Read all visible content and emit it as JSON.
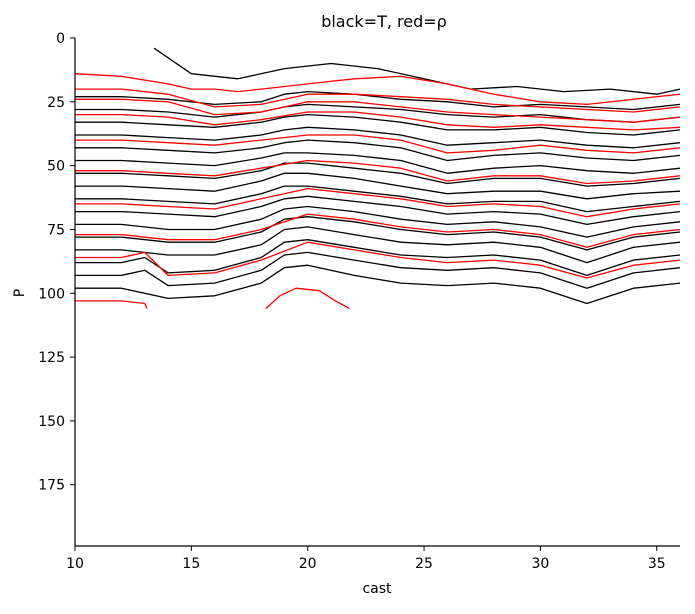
{
  "chart_data": {
    "type": "contour",
    "title": "black=T, red=ρ",
    "xlabel": "cast",
    "ylabel": "P",
    "xlim": [
      10,
      36
    ],
    "ylim": [
      199,
      0
    ],
    "y_inverted": true,
    "xticks": [
      10,
      15,
      20,
      25,
      30,
      35
    ],
    "yticks": [
      0,
      25,
      50,
      75,
      100,
      125,
      150,
      175
    ],
    "grid": false,
    "series": [
      {
        "color": "#000000",
        "contour_depths": [
          {
            "x": [
              13.4,
              15,
              17,
              19,
              21,
              23,
              25,
              27,
              29,
              31,
              33,
              35,
              36
            ],
            "y": [
              4,
              14,
              16,
              12,
              10,
              12,
              16,
              20,
              19,
              21,
              20,
              22,
              20
            ]
          },
          {
            "x": [
              10,
              12,
              14,
              16,
              18,
              19,
              20,
              22,
              24,
              26,
              28,
              30,
              32,
              34,
              36
            ],
            "y": [
              23,
              23,
              24,
              26,
              25,
              22,
              21,
              22,
              24,
              25,
              27,
              26,
              27,
              28,
              26
            ]
          },
          {
            "x": [
              10,
              12,
              14,
              16,
              18,
              19,
              20,
              22,
              24,
              26,
              28,
              30,
              32,
              34,
              36
            ],
            "y": [
              28,
              28,
              29,
              31,
              29,
              27,
              26,
              27,
              28,
              30,
              31,
              30,
              32,
              33,
              31
            ]
          },
          {
            "x": [
              10,
              12,
              14,
              16,
              18,
              19,
              20,
              22,
              24,
              26,
              28,
              30,
              32,
              34,
              36
            ],
            "y": [
              33,
              33,
              34,
              35,
              33,
              31,
              30,
              31,
              33,
              36,
              36,
              35,
              37,
              38,
              36
            ]
          },
          {
            "x": [
              10,
              12,
              14,
              16,
              18,
              19,
              20,
              22,
              24,
              26,
              28,
              30,
              32,
              34,
              36
            ],
            "y": [
              38,
              38,
              39,
              40,
              38,
              36,
              35,
              36,
              38,
              42,
              41,
              40,
              42,
              43,
              41
            ]
          },
          {
            "x": [
              10,
              12,
              14,
              16,
              18,
              19,
              20,
              22,
              24,
              26,
              28,
              30,
              32,
              34,
              36
            ],
            "y": [
              43,
              43,
              44,
              45,
              43,
              41,
              40,
              41,
              43,
              48,
              46,
              45,
              47,
              48,
              46
            ]
          },
          {
            "x": [
              10,
              12,
              14,
              16,
              18,
              19,
              20,
              22,
              24,
              26,
              28,
              30,
              32,
              34,
              36
            ],
            "y": [
              48,
              48,
              49,
              50,
              47,
              45,
              45,
              46,
              48,
              53,
              51,
              50,
              52,
              53,
              51
            ]
          },
          {
            "x": [
              10,
              12,
              14,
              16,
              18,
              19,
              20,
              22,
              24,
              26,
              28,
              30,
              32,
              34,
              36
            ],
            "y": [
              53,
              53,
              54,
              55,
              52,
              49,
              49,
              51,
              53,
              57,
              55,
              55,
              58,
              57,
              55
            ]
          },
          {
            "x": [
              10,
              12,
              14,
              16,
              18,
              19,
              20,
              22,
              24,
              26,
              28,
              30,
              32,
              34,
              36
            ],
            "y": [
              58,
              58,
              59,
              60,
              56,
              53,
              53,
              55,
              58,
              61,
              60,
              60,
              63,
              61,
              60
            ]
          },
          {
            "x": [
              10,
              12,
              14,
              16,
              18,
              19,
              20,
              22,
              24,
              26,
              28,
              30,
              32,
              34,
              36
            ],
            "y": [
              63,
              63,
              64,
              65,
              61,
              58,
              58,
              60,
              62,
              65,
              64,
              64,
              68,
              66,
              64
            ]
          },
          {
            "x": [
              10,
              12,
              14,
              16,
              18,
              19,
              20,
              22,
              24,
              26,
              28,
              30,
              32,
              34,
              36
            ],
            "y": [
              68,
              68,
              69,
              70,
              66,
              63,
              62,
              64,
              66,
              69,
              68,
              69,
              73,
              70,
              68
            ]
          },
          {
            "x": [
              10,
              12,
              14,
              16,
              18,
              19,
              20,
              22,
              24,
              26,
              28,
              30,
              32,
              34,
              36
            ],
            "y": [
              73,
              73,
              75,
              75,
              71,
              67,
              66,
              68,
              71,
              73,
              72,
              74,
              78,
              74,
              72
            ]
          },
          {
            "x": [
              10,
              12,
              14,
              16,
              18,
              19,
              20,
              22,
              24,
              26,
              28,
              30,
              32,
              34,
              36
            ],
            "y": [
              78,
              78,
              80,
              80,
              76,
              71,
              70,
              72,
              75,
              77,
              76,
              78,
              83,
              78,
              76
            ]
          },
          {
            "x": [
              10,
              12,
              14,
              16,
              18,
              19,
              20,
              22,
              24,
              26,
              28,
              30,
              32,
              34,
              36
            ],
            "y": [
              83,
              83,
              85,
              85,
              81,
              75,
              74,
              77,
              80,
              81,
              80,
              82,
              88,
              82,
              80
            ]
          },
          {
            "x": [
              10,
              12,
              13,
              14,
              16,
              18,
              19,
              20,
              22,
              24,
              26,
              28,
              30,
              32,
              34,
              36
            ],
            "y": [
              88,
              88,
              86,
              92,
              91,
              86,
              80,
              79,
              82,
              85,
              86,
              85,
              87,
              93,
              87,
              85
            ]
          },
          {
            "x": [
              10,
              12,
              13,
              14,
              16,
              18,
              19,
              20,
              22,
              24,
              26,
              28,
              30,
              32,
              34,
              36
            ],
            "y": [
              93,
              93,
              91,
              97,
              96,
              91,
              85,
              84,
              87,
              90,
              91,
              90,
              92,
              98,
              92,
              90
            ]
          },
          {
            "x": [
              10,
              12,
              14,
              16,
              18,
              19,
              20,
              22,
              24,
              26,
              28,
              30,
              32,
              34,
              36
            ],
            "y": [
              98,
              98,
              102,
              101,
              96,
              90,
              89,
              93,
              96,
              97,
              96,
              98,
              104,
              98,
              96
            ]
          }
        ]
      },
      {
        "color": "#ff0000",
        "contour_depths": [
          {
            "x": [
              10,
              12,
              14,
              15,
              16,
              17,
              18,
              20,
              22,
              24,
              26,
              28,
              30,
              32,
              34,
              36
            ],
            "y": [
              14,
              15,
              18,
              20,
              20,
              21,
              20,
              18,
              16,
              15,
              18,
              22,
              25,
              26,
              24,
              22
            ]
          },
          {
            "x": [
              10,
              12,
              14,
              16,
              18,
              20,
              22,
              24,
              26,
              28,
              30,
              32,
              34,
              36
            ],
            "y": [
              20,
              20,
              22,
              27,
              26,
              22,
              22,
              23,
              24,
              26,
              27,
              28,
              29,
              27
            ]
          },
          {
            "x": [
              10,
              12,
              14,
              16,
              18,
              20,
              22,
              24,
              26,
              28,
              30,
              32,
              34,
              36
            ],
            "y": [
              24,
              24,
              25,
              30,
              29,
              25,
              25,
              27,
              29,
              30,
              31,
              32,
              33,
              31
            ]
          },
          {
            "x": [
              10,
              12,
              14,
              16,
              18,
              20,
              22,
              24,
              26,
              28,
              30,
              32,
              34,
              36
            ],
            "y": [
              30,
              30,
              31,
              34,
              32,
              29,
              29,
              31,
              34,
              35,
              34,
              35,
              36,
              35
            ]
          },
          {
            "x": [
              10,
              12,
              14,
              16,
              18,
              20,
              22,
              24,
              26,
              28,
              30,
              32,
              34,
              36
            ],
            "y": [
              40,
              40,
              41,
              42,
              40,
              38,
              38,
              40,
              45,
              44,
              42,
              44,
              45,
              43
            ]
          },
          {
            "x": [
              10,
              12,
              14,
              16,
              18,
              20,
              22,
              24,
              26,
              28,
              30,
              32,
              34,
              36
            ],
            "y": [
              52,
              52,
              53,
              54,
              51,
              48,
              49,
              51,
              56,
              54,
              54,
              57,
              56,
              54
            ]
          },
          {
            "x": [
              10,
              12,
              14,
              16,
              18,
              20,
              22,
              24,
              26,
              28,
              30,
              32,
              34,
              36
            ],
            "y": [
              65,
              65,
              66,
              67,
              63,
              59,
              61,
              63,
              66,
              65,
              66,
              70,
              67,
              65
            ]
          },
          {
            "x": [
              10,
              12,
              14,
              16,
              18,
              20,
              22,
              24,
              26,
              28,
              30,
              32,
              34,
              36
            ],
            "y": [
              77,
              77,
              79,
              79,
              75,
              69,
              71,
              74,
              76,
              75,
              77,
              82,
              77,
              75
            ]
          },
          {
            "x": [
              10,
              12,
              13,
              14,
              16,
              18,
              20,
              22,
              24,
              26,
              28,
              30,
              32,
              34,
              36
            ],
            "y": [
              86,
              86,
              84,
              93,
              92,
              87,
              80,
              83,
              86,
              88,
              87,
              89,
              94,
              89,
              87
            ]
          },
          {
            "x": [
              10,
              12,
              13,
              13.1
            ],
            "y": [
              103,
              103,
              104,
              106
            ]
          },
          {
            "x": [
              18.2,
              18.8,
              19.5,
              20.5,
              21.2,
              21.8
            ],
            "y": [
              106,
              101,
              98,
              99,
              103,
              106
            ]
          }
        ]
      }
    ]
  }
}
